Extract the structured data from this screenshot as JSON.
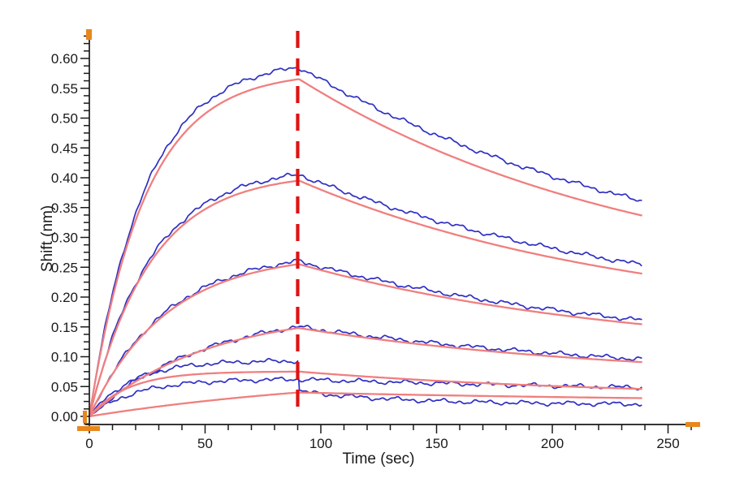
{
  "chart_data": {
    "type": "line",
    "title": "",
    "xlabel": "Time (sec)",
    "ylabel": "Shift (nm)",
    "x_range_sec": [
      0,
      263
    ],
    "y_range_nm": [
      0,
      0.6375
    ],
    "x_major_ticks": [
      0,
      50,
      100,
      150,
      200,
      250
    ],
    "x_tick_labels": [
      "0",
      "50",
      "100",
      "150",
      "200",
      "250"
    ],
    "x_minor_step_sec": 10,
    "y_major_step_nm": 0.05,
    "y_tick_labels": [
      "0.00",
      "0.05",
      "0.10",
      "0.15",
      "0.20",
      "0.25",
      "0.30",
      "0.35",
      "0.40",
      "0.45",
      "0.50",
      "0.55",
      "0.60"
    ],
    "y_minor_step_nm": 0.0125,
    "grid": "off",
    "legend": "none",
    "association_end_sec": 90,
    "data_end_sec": 239,
    "series": [
      {
        "id": "data-1",
        "role": "data",
        "assoc_peak_nm": 0.585,
        "ka": 0.042,
        "dissoc_end_nm": 0.37,
        "decay_floor_nm": 0.2,
        "noise_seed": 1
      },
      {
        "id": "data-2",
        "role": "data",
        "assoc_peak_nm": 0.405,
        "ka": 0.038,
        "dissoc_end_nm": 0.26,
        "decay_floor_nm": 0.15,
        "noise_seed": 2
      },
      {
        "id": "data-3",
        "role": "data",
        "assoc_peak_nm": 0.26,
        "ka": 0.03,
        "dissoc_end_nm": 0.165,
        "decay_floor_nm": 0.1,
        "noise_seed": 3
      },
      {
        "id": "data-4",
        "role": "data",
        "assoc_peak_nm": 0.15,
        "ka": 0.02,
        "dissoc_end_nm": 0.098,
        "decay_floor_nm": 0.06,
        "noise_seed": 4
      },
      {
        "id": "data-5",
        "role": "data",
        "assoc_peak_nm": 0.093,
        "ka": 0.055,
        "step_drop_to_nm": 0.042,
        "dissoc_end_nm": 0.021,
        "decay_floor_nm": 0.02,
        "noise_seed": 5
      },
      {
        "id": "data-6",
        "role": "data",
        "assoc_peak_nm": 0.062,
        "ka": 0.05,
        "dissoc_end_nm": 0.049,
        "decay_floor_nm": 0.03,
        "noise_seed": 6
      },
      {
        "id": "fit-1",
        "role": "fit",
        "assoc_peak_nm": 0.565,
        "ka": 0.042,
        "dissoc_end_nm": 0.345,
        "decay_floor_nm": 0.2
      },
      {
        "id": "fit-2",
        "role": "fit",
        "assoc_peak_nm": 0.395,
        "ka": 0.038,
        "dissoc_end_nm": 0.245,
        "decay_floor_nm": 0.15
      },
      {
        "id": "fit-3",
        "role": "fit",
        "assoc_peak_nm": 0.255,
        "ka": 0.03,
        "dissoc_end_nm": 0.158,
        "decay_floor_nm": 0.1
      },
      {
        "id": "fit-4",
        "role": "fit",
        "assoc_peak_nm": 0.148,
        "ka": 0.02,
        "dissoc_end_nm": 0.093,
        "decay_floor_nm": 0.06
      },
      {
        "id": "fit-5",
        "role": "fit",
        "assoc_peak_nm": 0.075,
        "ka": 0.06,
        "dissoc_end_nm": 0.047,
        "decay_floor_nm": 0.03
      },
      {
        "id": "fit-6",
        "role": "fit",
        "assoc_peak_nm": 0.04,
        "ka": 0.008,
        "dissoc_end_nm": 0.031,
        "decay_floor_nm": 0.02
      }
    ],
    "colors": {
      "data_trace": "#2f2fc4",
      "fit_trace": "#f07f7f",
      "transition_line": "#e01212",
      "axis": "#1a1a1a",
      "tick_label": "#1a1a1a",
      "range_handle": "#e8871c",
      "background": "#ffffff"
    }
  }
}
